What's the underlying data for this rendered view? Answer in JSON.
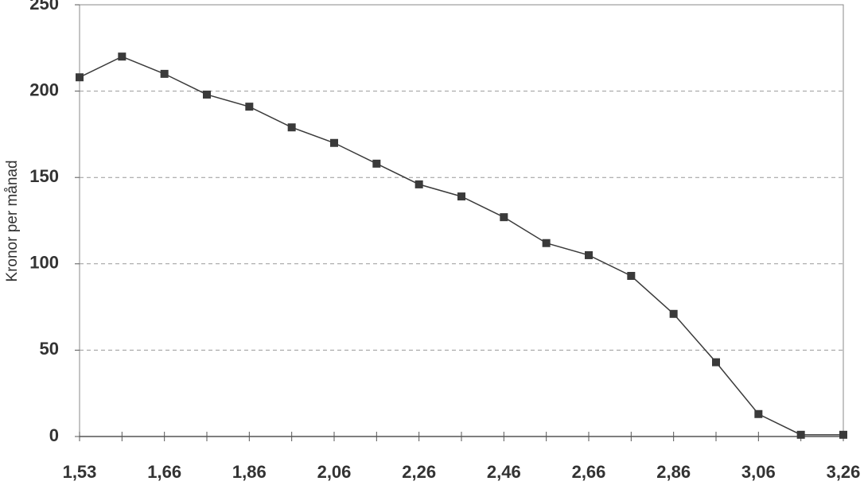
{
  "chart_data": {
    "type": "line",
    "y_label": "Kronor per månad",
    "categories": [
      "1,53",
      null,
      "1,66",
      null,
      "1,86",
      null,
      "2,06",
      null,
      "2,26",
      null,
      "2,46",
      null,
      "2,66",
      null,
      "2,86",
      null,
      "3,06",
      null,
      "3,26"
    ],
    "series": [
      {
        "color": "#3a3a3a",
        "values": [
          208,
          220,
          210,
          198,
          191,
          179,
          170,
          158,
          146,
          139,
          127,
          112,
          105,
          93,
          71,
          43,
          13,
          1,
          1
        ]
      }
    ],
    "ylim": [
      0,
      250
    ],
    "yticks": [
      0,
      50,
      100,
      150,
      200,
      250
    ],
    "grid": true
  }
}
